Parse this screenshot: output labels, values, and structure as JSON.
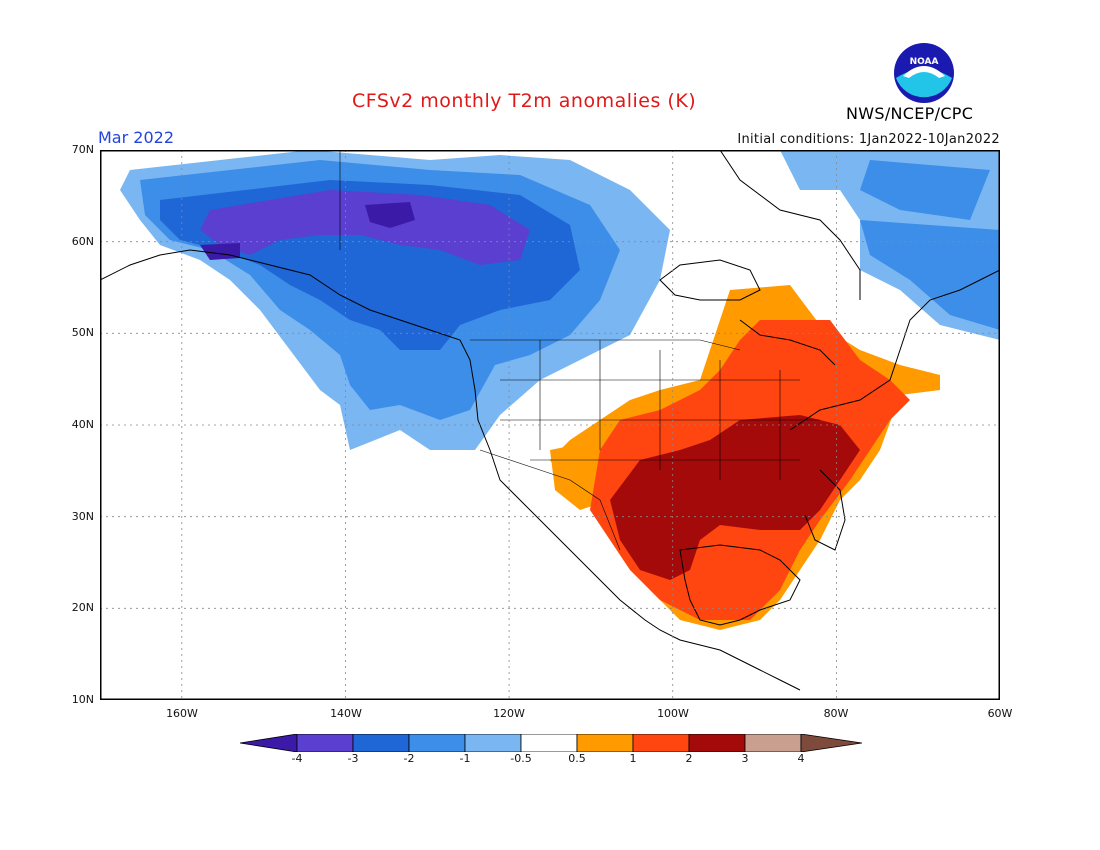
{
  "header": {
    "title": "CFSv2 monthly T2m anomalies (K)",
    "month": "Mar 2022",
    "initial_conditions": "Initial conditions: 1Jan2022-10Jan2022",
    "agency": "NWS/NCEP/CPC",
    "logo_text": "NOAA"
  },
  "axes": {
    "lat_labels": [
      "70N",
      "60N",
      "50N",
      "40N",
      "30N",
      "20N",
      "10N"
    ],
    "lon_labels": [
      "160W",
      "140W",
      "120W",
      "100W",
      "80W",
      "60W"
    ]
  },
  "legend": {
    "levels": [
      "-4",
      "-3",
      "-2",
      "-1",
      "-0.5",
      "0.5",
      "1",
      "2",
      "3",
      "4"
    ],
    "colors": [
      "#3b1aa8",
      "#5a3fd0",
      "#1f66d6",
      "#3d8ee8",
      "#7ab6f2",
      "#ffffff",
      "#ff9a00",
      "#ff4510",
      "#a50a0a",
      "#c9a090",
      "#7d4a3c"
    ]
  },
  "map_data": {
    "region": "North America",
    "lat_range": [
      "10N",
      "70N"
    ],
    "lon_range": [
      "170W",
      "60W"
    ],
    "anomaly_regions": [
      {
        "area": "Alaska / northwestern Canada",
        "category": "-3 to -4 K"
      },
      {
        "area": "Western Canada / Pacific Northwest",
        "category": "-1 to -3 K"
      },
      {
        "area": "Northern Canada",
        "category": "-0.5 to -2 K"
      },
      {
        "area": "Southeastern US / Texas / Mexico",
        "category": "2 to 3 K"
      },
      {
        "area": "Central & eastern US",
        "category": "1 to 2 K"
      },
      {
        "area": "Great Lakes / Southwest US margins",
        "category": "0.5 to 1 K"
      }
    ]
  }
}
